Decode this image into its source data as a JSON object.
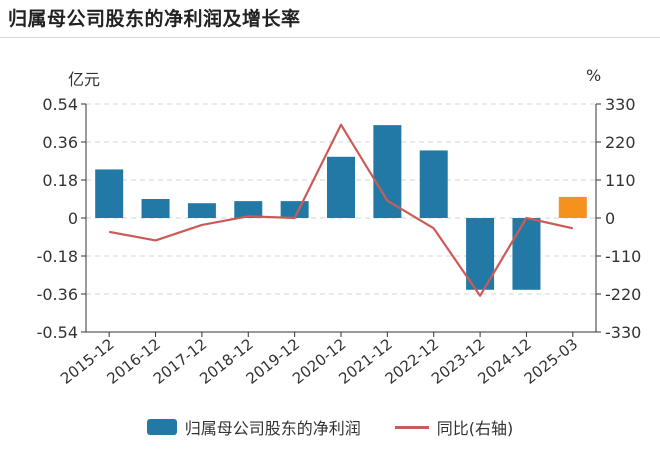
{
  "chart_data": {
    "type": "bar",
    "title": "归属母公司股东的净利润及增长率",
    "left_unit": "亿元",
    "right_unit": "%",
    "categories": [
      "2015-12",
      "2016-12",
      "2017-12",
      "2018-12",
      "2019-12",
      "2020-12",
      "2021-12",
      "2022-12",
      "2023-12",
      "2024-12",
      "2025-03"
    ],
    "series": [
      {
        "name": "归属母公司股东的净利润",
        "type": "bar",
        "axis": "left",
        "values": [
          0.23,
          0.09,
          0.07,
          0.08,
          0.08,
          0.29,
          0.44,
          0.32,
          -0.34,
          -0.34,
          0.1
        ],
        "colors": [
          "#2379a6",
          "#2379a6",
          "#2379a6",
          "#2379a6",
          "#2379a6",
          "#2379a6",
          "#2379a6",
          "#2379a6",
          "#2379a6",
          "#2379a6",
          "#f5921e"
        ]
      },
      {
        "name": "同比(右轴)",
        "type": "line",
        "axis": "right",
        "values": [
          -40,
          -65,
          -20,
          5,
          0,
          270,
          50,
          -30,
          -225,
          0,
          -30
        ],
        "color": "#cc5b57"
      }
    ],
    "y_left": {
      "min": -0.54,
      "max": 0.54,
      "ticks": [
        "0.54",
        "0.36",
        "0.18",
        "0",
        "-0.18",
        "-0.36",
        "-0.54"
      ]
    },
    "y_right": {
      "min": -330,
      "max": 330,
      "ticks": [
        "330",
        "220",
        "110",
        "0",
        "-110",
        "-220",
        "-330"
      ]
    },
    "grid": true,
    "legend_position": "bottom"
  }
}
